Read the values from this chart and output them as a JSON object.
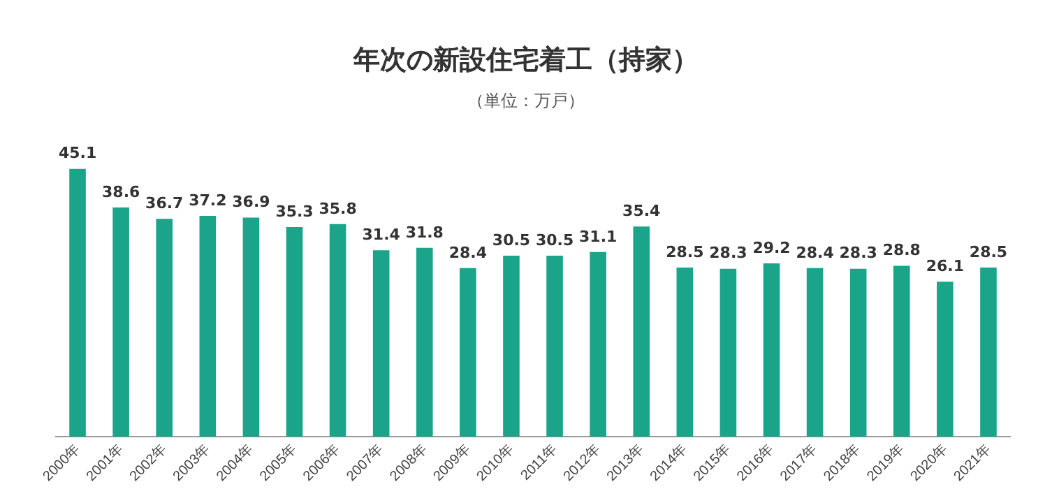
{
  "chart_data": {
    "type": "bar",
    "title": "年次の新設住宅着工（持家）",
    "subtitle": "（単位：万戸）",
    "categories": [
      "2000年",
      "2001年",
      "2002年",
      "2003年",
      "2004年",
      "2005年",
      "2006年",
      "2007年",
      "2008年",
      "2009年",
      "2010年",
      "2011年",
      "2012年",
      "2013年",
      "2014年",
      "2015年",
      "2016年",
      "2017年",
      "2018年",
      "2019年",
      "2020年",
      "2021年"
    ],
    "values": [
      45.1,
      38.6,
      36.7,
      37.2,
      36.9,
      35.3,
      35.8,
      31.4,
      31.8,
      28.4,
      30.5,
      30.5,
      31.1,
      35.4,
      28.5,
      28.3,
      29.2,
      28.4,
      28.3,
      28.8,
      26.1,
      28.5
    ],
    "color": "#1aa58a",
    "data_labels": true,
    "grid": false,
    "legend": false
  }
}
